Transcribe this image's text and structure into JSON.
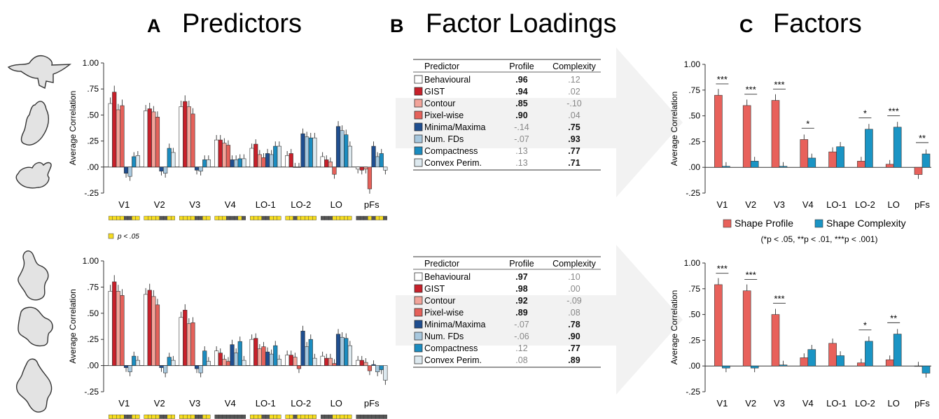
{
  "panels": {
    "A": {
      "letter": "A",
      "title": "Predictors"
    },
    "B": {
      "letter": "B",
      "title": "Factor Loadings"
    },
    "C": {
      "letter": "C",
      "title": "Factors"
    }
  },
  "sig_note": "p < .05",
  "legend_c": {
    "items": [
      "Shape Profile",
      "Shape Complexity"
    ],
    "note": "(*p < .05, **p < .01, ***p < .001)"
  },
  "colors": {
    "Behavioural": "#ffffff",
    "GIST": "#c8202a",
    "Contour": "#f2a49a",
    "Pixel-wise": "#e5615a",
    "Minima/Maxima": "#1f4e8f",
    "Num. FDs": "#a8c8de",
    "Compactness": "#1b8cc0",
    "Convex Perim.": "#dde9ef",
    "Shape Profile": "#e8615b",
    "Shape Complexity": "#1a94c4",
    "sig_yes": "#f5dc20",
    "sig_no": "#555555"
  },
  "tables": [
    {
      "headers": [
        "Predictor",
        "Profile",
        "Complexity"
      ],
      "rows": [
        {
          "name": "Behavioural",
          "profile": ".96",
          "complexity": ".12",
          "bold": "profile"
        },
        {
          "name": "GIST",
          "profile": ".94",
          "complexity": ".02",
          "bold": "profile"
        },
        {
          "name": "Contour",
          "profile": ".85",
          "complexity": "-.10",
          "bold": "profile"
        },
        {
          "name": "Pixel-wise",
          "profile": ".90",
          "complexity": ".04",
          "bold": "profile"
        },
        {
          "name": "Minima/Maxima",
          "profile": "-.14",
          "complexity": ".75",
          "bold": "complexity"
        },
        {
          "name": "Num. FDs",
          "profile": "-.07",
          "complexity": ".93",
          "bold": "complexity"
        },
        {
          "name": "Compactness",
          "profile": ".13",
          "complexity": ".77",
          "bold": "complexity"
        },
        {
          "name": "Convex Perim.",
          "profile": ".13",
          "complexity": ".71",
          "bold": "complexity"
        }
      ]
    },
    {
      "headers": [
        "Predictor",
        "Profile",
        "Complexity"
      ],
      "rows": [
        {
          "name": "Behavioural",
          "profile": ".97",
          "complexity": ".10",
          "bold": "profile"
        },
        {
          "name": "GIST",
          "profile": ".98",
          "complexity": ".00",
          "bold": "profile"
        },
        {
          "name": "Contour",
          "profile": ".92",
          "complexity": "-.09",
          "bold": "profile"
        },
        {
          "name": "Pixel-wise",
          "profile": ".89",
          "complexity": ".08",
          "bold": "profile"
        },
        {
          "name": "Minima/Maxima",
          "profile": "-.07",
          "complexity": ".78",
          "bold": "complexity"
        },
        {
          "name": "Num. FDs",
          "profile": "-.06",
          "complexity": ".90",
          "bold": "complexity"
        },
        {
          "name": "Compactness",
          "profile": ".12",
          "complexity": ".77",
          "bold": "complexity"
        },
        {
          "name": "Convex Perim.",
          "profile": ".08",
          "complexity": ".89",
          "bold": "complexity"
        }
      ]
    }
  ],
  "chart_data": [
    {
      "id": "A-top",
      "type": "bar",
      "ylabel": "Average Correlation",
      "ylim": [
        -0.25,
        1.0
      ],
      "yticks": [
        "1.00",
        ".75",
        ".50",
        ".25",
        ".00",
        "-.25"
      ],
      "categories": [
        "V1",
        "V2",
        "V3",
        "V4",
        "LO-1",
        "LO-2",
        "LO",
        "pFs"
      ],
      "series": [
        {
          "name": "Behavioural",
          "values": [
            0.61,
            0.54,
            0.58,
            0.26,
            0.18,
            0.11,
            0.1,
            -0.02
          ]
        },
        {
          "name": "GIST",
          "values": [
            0.72,
            0.56,
            0.63,
            0.26,
            0.22,
            0.13,
            0.07,
            -0.03
          ]
        },
        {
          "name": "Contour",
          "values": [
            0.55,
            0.53,
            0.58,
            0.23,
            0.12,
            0.0,
            0.05,
            -0.02
          ]
        },
        {
          "name": "Pixel-wise",
          "values": [
            0.59,
            0.48,
            0.51,
            0.21,
            0.09,
            0.0,
            -0.07,
            -0.21
          ]
        },
        {
          "name": "Minima/Maxima",
          "values": [
            -0.06,
            -0.04,
            -0.03,
            0.07,
            0.13,
            0.32,
            0.39,
            0.2
          ]
        },
        {
          "name": "Num. FDs",
          "values": [
            -0.09,
            -0.06,
            -0.04,
            0.07,
            0.12,
            0.29,
            0.35,
            0.1
          ]
        },
        {
          "name": "Compactness",
          "values": [
            0.1,
            0.18,
            0.07,
            0.08,
            0.2,
            0.28,
            0.31,
            0.13
          ]
        },
        {
          "name": "Convex Perim.",
          "values": [
            0.11,
            0.14,
            0.07,
            0.08,
            0.2,
            0.28,
            0.2,
            -0.03
          ]
        }
      ],
      "significance": [
        [
          1,
          1,
          1,
          1,
          0,
          0,
          1,
          1
        ],
        [
          1,
          1,
          1,
          1,
          0,
          0,
          1,
          1
        ],
        [
          1,
          1,
          1,
          1,
          0,
          0,
          1,
          1
        ],
        [
          1,
          1,
          1,
          0,
          0,
          0,
          1,
          0
        ],
        [
          1,
          1,
          1,
          0,
          0,
          1,
          1,
          1
        ],
        [
          1,
          1,
          0,
          1,
          1,
          1,
          1,
          1
        ],
        [
          0,
          0,
          0,
          1,
          1,
          1,
          1,
          1
        ],
        [
          0,
          0,
          0,
          1,
          0,
          1,
          1,
          0
        ]
      ]
    },
    {
      "id": "A-bottom",
      "type": "bar",
      "ylabel": "Average Correlation",
      "ylim": [
        -0.25,
        1.0
      ],
      "yticks": [
        "1.00",
        ".75",
        ".50",
        ".25",
        ".00",
        "-.25"
      ],
      "categories": [
        "V1",
        "V2",
        "V3",
        "V4",
        "LO-1",
        "LO-2",
        "LO",
        "pFs"
      ],
      "series": [
        {
          "name": "Behavioural",
          "values": [
            0.71,
            0.68,
            0.46,
            0.14,
            0.25,
            0.1,
            0.09,
            0.05
          ]
        },
        {
          "name": "GIST",
          "values": [
            0.8,
            0.72,
            0.53,
            0.12,
            0.26,
            0.1,
            0.07,
            0.05
          ]
        },
        {
          "name": "Contour",
          "values": [
            0.71,
            0.66,
            0.4,
            0.06,
            0.16,
            0.08,
            0.07,
            0.03
          ]
        },
        {
          "name": "Pixel-wise",
          "values": [
            0.67,
            0.58,
            0.41,
            0.04,
            0.18,
            -0.03,
            0.02,
            -0.05
          ]
        },
        {
          "name": "Minima/Maxima",
          "values": [
            -0.02,
            -0.02,
            -0.03,
            0.2,
            0.13,
            0.33,
            0.3,
            0.01
          ]
        },
        {
          "name": "Num. FDs",
          "values": [
            -0.06,
            -0.07,
            -0.07,
            0.12,
            0.11,
            0.18,
            0.27,
            -0.06
          ]
        },
        {
          "name": "Compactness",
          "values": [
            0.09,
            0.08,
            0.14,
            0.23,
            0.19,
            0.25,
            0.26,
            -0.04
          ]
        },
        {
          "name": "Convex Perim.",
          "values": [
            0.05,
            0.05,
            0.04,
            0.05,
            0.06,
            0.07,
            0.19,
            -0.14
          ]
        }
      ],
      "significance": [
        [
          1,
          1,
          1,
          1,
          0,
          0,
          1,
          1
        ],
        [
          1,
          1,
          1,
          1,
          0,
          0,
          1,
          1
        ],
        [
          1,
          1,
          1,
          1,
          0,
          0,
          1,
          1
        ],
        [
          0,
          0,
          0,
          0,
          0,
          0,
          0,
          0
        ],
        [
          1,
          1,
          1,
          0,
          0,
          1,
          1,
          1
        ],
        [
          1,
          1,
          0,
          1,
          1,
          1,
          1,
          1
        ],
        [
          0,
          0,
          0,
          1,
          1,
          1,
          1,
          1
        ],
        [
          0,
          0,
          0,
          0,
          0,
          0,
          0,
          0
        ]
      ]
    },
    {
      "id": "C-top",
      "type": "bar",
      "ylabel": "Average Correlation",
      "ylim": [
        -0.25,
        1.0
      ],
      "yticks": [
        "1.00",
        ".75",
        ".50",
        ".25",
        ".00",
        "-.25"
      ],
      "categories": [
        "V1",
        "V2",
        "V3",
        "V4",
        "LO-1",
        "LO-2",
        "LO",
        "pFs"
      ],
      "series": [
        {
          "name": "Shape Profile",
          "values": [
            0.7,
            0.6,
            0.65,
            0.27,
            0.15,
            0.06,
            0.03,
            -0.07
          ]
        },
        {
          "name": "Shape Complexity",
          "values": [
            0.01,
            0.06,
            0.01,
            0.09,
            0.2,
            0.37,
            0.39,
            0.13
          ]
        }
      ],
      "stars": [
        "***",
        "***",
        "***",
        "*",
        "",
        "*",
        "***",
        "**"
      ]
    },
    {
      "id": "C-bottom",
      "type": "bar",
      "ylabel": "Average Correlation",
      "ylim": [
        -0.25,
        1.0
      ],
      "yticks": [
        "1.00",
        ".75",
        ".50",
        ".25",
        ".00",
        "-.25"
      ],
      "categories": [
        "V1",
        "V2",
        "V3",
        "V4",
        "LO-1",
        "LO-2",
        "LO",
        "pFs"
      ],
      "series": [
        {
          "name": "Shape Profile",
          "values": [
            0.79,
            0.73,
            0.5,
            0.08,
            0.22,
            0.03,
            0.06,
            0.0
          ]
        },
        {
          "name": "Shape Complexity",
          "values": [
            -0.02,
            -0.02,
            0.01,
            0.16,
            0.1,
            0.24,
            0.31,
            -0.07
          ]
        }
      ],
      "stars": [
        "***",
        "***",
        "***",
        "",
        "",
        "*",
        "**",
        ""
      ]
    }
  ]
}
